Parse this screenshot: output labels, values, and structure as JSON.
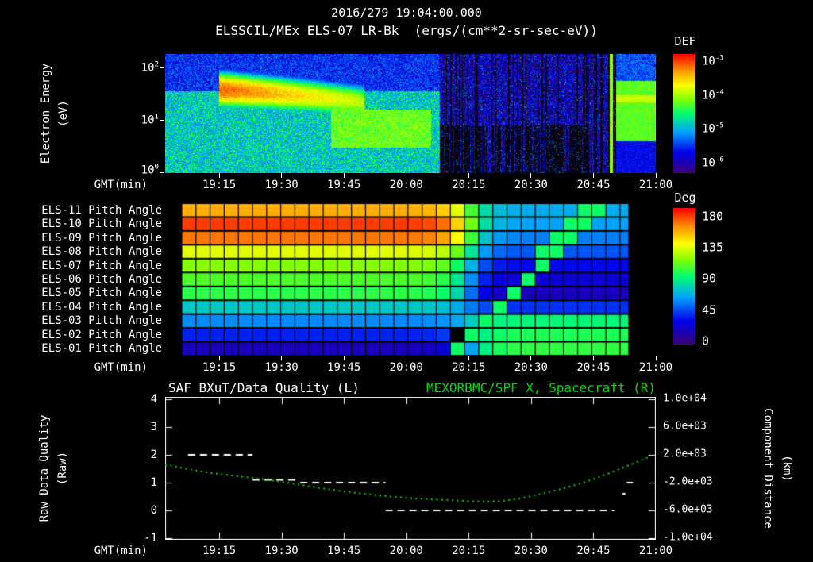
{
  "header": {
    "timestamp": "2016/279 19:04:00.000",
    "title_line2": "ELSSCIL/MEx ELS-07 LR-Bk  (ergs/(cm**2-sr-sec-eV))",
    "def_label": "DEF",
    "deg_label": "Deg"
  },
  "time_axis": {
    "label": "GMT(min)",
    "start_min_after_1900": 2,
    "end_min_after_1900": 120,
    "tick_minutes": [
      15,
      30,
      45,
      60,
      75,
      90,
      105,
      120
    ],
    "tick_labels": [
      "19:15",
      "19:30",
      "19:45",
      "20:00",
      "20:15",
      "20:30",
      "20:45",
      "21:00"
    ]
  },
  "chart_data": [
    {
      "id": "electron-spectrogram",
      "type": "heatmap",
      "title": "ELSSCIL/MEx ELS-07 LR-Bk",
      "units": "(ergs/(cm**2-sr-sec-eV))",
      "ylabel": "Electron Energy",
      "ylabel_units": "(eV)",
      "y_scale": "log",
      "energy_range_ev": [
        1,
        180
      ],
      "y_tick_exponents": [
        "2",
        "1",
        "0"
      ],
      "colorbar": {
        "label": "DEF",
        "tick_exponents": [
          "-3",
          "-4",
          "-5",
          "-6"
        ],
        "log10_flux_range": [
          -6.3,
          -2.8
        ]
      },
      "features": [
        {
          "name": "left-active-region",
          "t_min": [
            2,
            68
          ],
          "log10_flux_high_e": -5.55,
          "log10_flux_low_e": -4.85,
          "low_e_max_ev": 35
        },
        {
          "name": "bright-ridge",
          "t_min": [
            15,
            50
          ],
          "energy_center_ev": [
            38,
            22
          ],
          "log10_flux_peak": -3.1
        },
        {
          "name": "low-energy-blob",
          "t_min": [
            42,
            66
          ],
          "energy_ev": [
            3,
            16
          ],
          "log10_flux": -4.2
        },
        {
          "name": "quiet-region",
          "t_min": [
            68,
            120
          ],
          "log10_flux": -5.95
        },
        {
          "name": "low-energy-dropout",
          "t_min": [
            68,
            104
          ],
          "energy_ev": [
            1,
            8
          ],
          "log10_flux": -6.6
        },
        {
          "name": "vertical-green-line",
          "t_min": [
            109.0,
            109.6
          ],
          "log10_flux": -4.05
        },
        {
          "name": "right-green-band",
          "t_min": [
            110.5,
            120
          ],
          "energy_ev": [
            4,
            55
          ],
          "log10_flux": -4.25,
          "bright_line_ev": [
            22,
            30
          ],
          "bright_line_log10_flux": -3.9
        }
      ]
    },
    {
      "id": "pitch-angle-panel",
      "type": "heatmap",
      "deg_range": [
        0,
        180
      ],
      "colorbar": {
        "label": "Deg",
        "ticks": [
          "180",
          "135",
          "90",
          "45",
          "0"
        ]
      },
      "rows": [
        {
          "label": "ELS-11 Pitch Angle",
          "before_deg": 150,
          "after_deg": 65
        },
        {
          "label": "ELS-10 Pitch Angle",
          "before_deg": 170,
          "after_deg": 62
        },
        {
          "label": "ELS-09 Pitch Angle",
          "before_deg": 160,
          "after_deg": 55
        },
        {
          "label": "ELS-08 Pitch Angle",
          "before_deg": 128,
          "after_deg": 47
        },
        {
          "label": "ELS-07 Pitch Angle",
          "before_deg": 112,
          "after_deg": 32
        },
        {
          "label": "ELS-06 Pitch Angle",
          "before_deg": 103,
          "after_deg": 24
        },
        {
          "label": "ELS-05 Pitch Angle",
          "before_deg": 97,
          "after_deg": 18
        },
        {
          "label": "ELS-04 Pitch Angle",
          "before_deg": 73,
          "after_deg": 40
        },
        {
          "label": "ELS-03 Pitch Angle",
          "before_deg": 57,
          "after_deg": 88
        },
        {
          "label": "ELS-02 Pitch Angle",
          "before_deg": 37,
          "after_deg": 95
        },
        {
          "label": "ELS-01 Pitch Angle",
          "before_deg": 18,
          "after_deg": 98
        }
      ],
      "data_start_min": 6,
      "data_end_min": 113.5,
      "cell_minutes": 3.4,
      "transition": {
        "center_min": 75,
        "width_min": 2.5,
        "band_start_min": 72,
        "band_slope_min_per_row": 3.3,
        "band_half_width_min": 2.4,
        "band_deg": 92
      },
      "dropout_cells": [
        {
          "row": "ELS-02",
          "min": 73.5
        }
      ]
    },
    {
      "id": "quality-distance-plot",
      "type": "line",
      "left_axis": {
        "title": "SAF_BXuT/Data Quality (L)",
        "label": "Raw Data Quality",
        "label_units": "(Raw)",
        "ticks": [
          "4",
          "3",
          "2",
          "1",
          "0",
          "-1"
        ],
        "range": [
          -1,
          4
        ]
      },
      "right_axis": {
        "title": "MEXORBMC/SPF X, Spacecraft (R)",
        "label": "Component Distance",
        "label_units": "(km)",
        "ticks": [
          "1.0e+04",
          "6.0e+03",
          "2.0e+03",
          "-2.0e+03",
          "-6.0e+03",
          "-1.0e+04"
        ],
        "range": [
          -10000,
          10000
        ]
      },
      "quality_segments": [
        {
          "start_min": 7.5,
          "end_min": 23,
          "value": 2.0
        },
        {
          "start_min": 23,
          "end_min": 34,
          "value": 1.1
        },
        {
          "start_min": 34.5,
          "end_min": 55,
          "value": 1.0
        },
        {
          "start_min": 55,
          "end_min": 110,
          "value": 0.0
        },
        {
          "start_min": 113,
          "end_min": 114.5,
          "value": 1.0
        },
        {
          "start_min": 112,
          "end_min": 112.7,
          "value": 0.6
        }
      ],
      "spacecraft_x_km": {
        "minutes": [
          2,
          13,
          28,
          43,
          58,
          73,
          80,
          88,
          103,
          118
        ],
        "km": [
          600,
          -600,
          -1700,
          -3100,
          -4100,
          -4600,
          -4700,
          -4200,
          -1900,
          1600
        ]
      },
      "colors": {
        "quality": "#ffffff",
        "spacecraft": "#00dd00"
      }
    }
  ]
}
